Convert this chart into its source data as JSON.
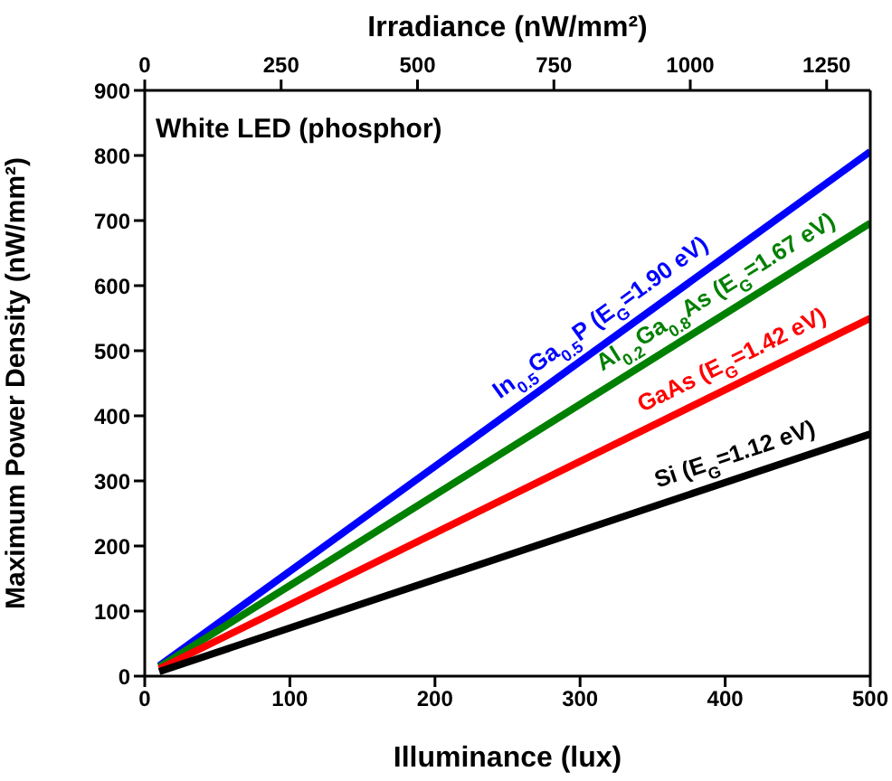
{
  "chart_data": {
    "type": "line",
    "xlabel": "Illuminance (lux)",
    "ylabel": "Maximum Power Density (nW/mm²)",
    "x2label": "Irradiance (nW/mm²)",
    "x": [
      10,
      500
    ],
    "series": [
      {
        "name": "In$_{0.5}$Ga$_{0.5}$P (E$_{G}$=1.90 eV)",
        "color": "#0000ff",
        "values": [
          16,
          806
        ]
      },
      {
        "name": "Al$_{0.2}$Ga$_{0.8}$As (E$_{G}$=1.67 eV)",
        "color": "#008000",
        "values": [
          14,
          696
        ]
      },
      {
        "name": "GaAs (E$_{G}$=1.42 eV)",
        "color": "#ff0000",
        "values": [
          11,
          550
        ]
      },
      {
        "name": "Si (E$_{G}$=1.12 eV)",
        "color": "#000000",
        "values": [
          7,
          372
        ]
      }
    ],
    "xlim": [
      0,
      500
    ],
    "xticks": [
      0,
      100,
      200,
      300,
      400,
      500
    ],
    "ylim": [
      0,
      900
    ],
    "yticks": [
      0,
      100,
      200,
      300,
      400,
      500,
      600,
      700,
      800,
      900
    ],
    "x2lim": [
      0,
      1330
    ],
    "x2ticks": [
      0,
      250,
      500,
      750,
      1000,
      1250
    ],
    "annotations": [
      "White LED (phosphor)"
    ],
    "grid": false,
    "legend": false,
    "marker": "none",
    "line_style": "solid"
  }
}
